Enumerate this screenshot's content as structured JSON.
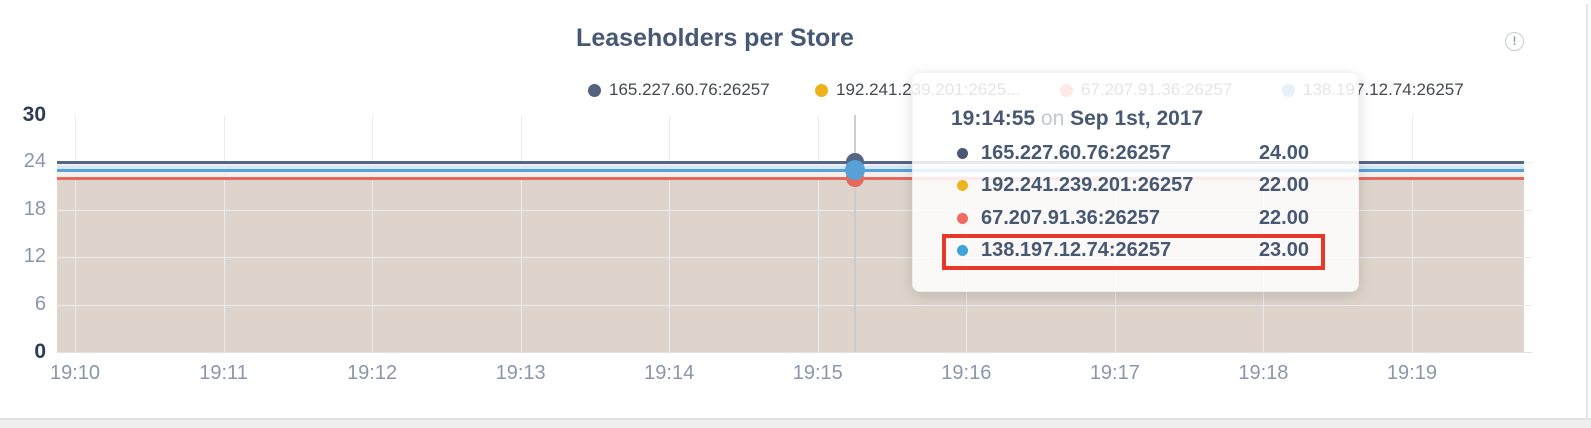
{
  "title": "Leaseholders per Store",
  "alert": {
    "glyph": "!"
  },
  "legend": {
    "items": [
      {
        "label": "165.227.60.76:26257",
        "color": "#52627f"
      },
      {
        "label": "192.241.239.201:2625...",
        "color": "#edb11c"
      },
      {
        "label": "67.207.91.36:26257",
        "color": "#ec6a5f"
      },
      {
        "label": "138.197.12.74:26257",
        "color": "#4da3d9"
      }
    ]
  },
  "tooltip": {
    "time": "19:14:55",
    "conjunction": "on",
    "date": "Sep 1st, 2017",
    "rows": [
      {
        "label": "165.227.60.76:26257",
        "value": "24.00",
        "color": "#4a5a74",
        "highlighted": false
      },
      {
        "label": "192.241.239.201:26257",
        "value": "22.00",
        "color": "#edb41d",
        "highlighted": false
      },
      {
        "label": "67.207.91.36:26257",
        "value": "22.00",
        "color": "#ef6a60",
        "highlighted": false
      },
      {
        "label": "138.197.12.74:26257",
        "value": "23.00",
        "color": "#3fa2da",
        "highlighted": true
      }
    ],
    "highlight_color": "#e8382a"
  },
  "chart_data": {
    "type": "line",
    "area": true,
    "title": "Leaseholders per Store",
    "xlabel": "",
    "ylabel": "",
    "x_ticks": [
      "19:10",
      "19:11",
      "19:12",
      "19:13",
      "19:14",
      "19:15",
      "19:16",
      "19:17",
      "19:18",
      "19:19"
    ],
    "y_ticks": [
      0,
      6,
      12,
      18,
      24,
      30
    ],
    "ylim": [
      0,
      30
    ],
    "grid": true,
    "legend_position": "top",
    "series": [
      {
        "name": "165.227.60.76:26257",
        "color": "#556685",
        "values": [
          24,
          24,
          24,
          24,
          24,
          24,
          24,
          24,
          24,
          24
        ]
      },
      {
        "name": "192.241.239.201:26257",
        "color": "#edb11c",
        "values": [
          22,
          22,
          22,
          22,
          22,
          22,
          22,
          22,
          22,
          22
        ]
      },
      {
        "name": "67.207.91.36:26257",
        "color": "#e66960",
        "values": [
          22,
          22,
          22,
          22,
          22,
          22,
          22,
          22,
          22,
          22
        ]
      },
      {
        "name": "138.197.12.74:26257",
        "color": "#55a1d8",
        "values": [
          23,
          23,
          23,
          23,
          23,
          23,
          23,
          23,
          23,
          23
        ]
      }
    ],
    "hover_point": {
      "time": "19:14:55",
      "date": "Sep 1st, 2017",
      "values_by_series": [
        24,
        22,
        22,
        23
      ]
    },
    "fill_color": "#ded4cb",
    "band_above_blue": [
      "#f0f2f5",
      "#d8e7f5"
    ],
    "band_above_red": "#f4f0ed"
  }
}
